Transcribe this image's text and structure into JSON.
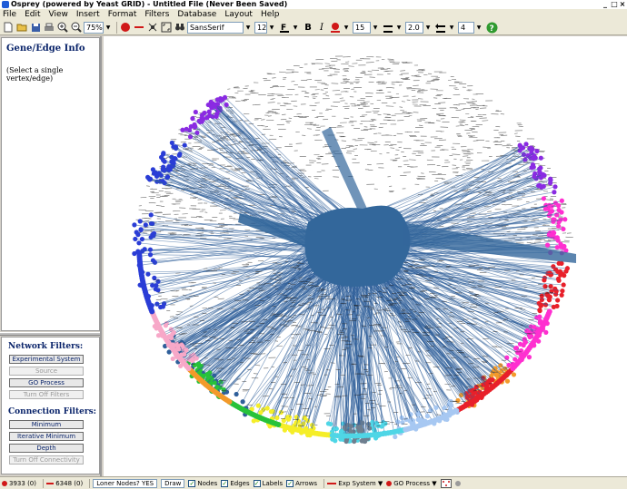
{
  "window": {
    "title": "Osprey (powered by Yeast GRID) - Untitled File (Never Been Saved)"
  },
  "menu": [
    "File",
    "Edit",
    "View",
    "Insert",
    "Format",
    "Filters",
    "Database",
    "Layout",
    "Help"
  ],
  "toolbar": {
    "zoom": "75%",
    "font_name": "SansSerif",
    "font_size": "12",
    "node_size": "15",
    "line_width": "2.0",
    "arrow_size": "4",
    "bold_label": "B",
    "italic_label": "I"
  },
  "info_panel": {
    "title": "Gene/Edge Info",
    "message": "(Select a single vertex/edge)"
  },
  "network_filters": {
    "title": "Network Filters:",
    "buttons": [
      "Experimental System",
      "Source",
      "GO Process",
      "Turn Off Filters"
    ]
  },
  "connection_filters": {
    "title": "Connection Filters:",
    "buttons": [
      "Minimum",
      "Iterative Minimum",
      "Depth",
      "Turn Off Connectivity"
    ]
  },
  "status": {
    "nodes_count": "3933",
    "nodes_selected": "(0)",
    "edges_count": "6348",
    "edges_selected": "(0)",
    "loner_nodes": "Loner Nodes? YES",
    "draw_label": "Draw",
    "nodes_label": "Nodes",
    "edges_label": "Edges",
    "labels_label": "Labels",
    "arrows_label": "Arrows",
    "exp_system_label": "Exp System",
    "go_process_label": "GO Process"
  },
  "colors": {
    "hub": "#33679b",
    "edge": "#2f5f9a",
    "purple": "#8a2be2",
    "magenta": "#ff2fd0",
    "blue": "#2a3dd6",
    "yellow": "#f5ee28",
    "orange": "#f39a2a",
    "cyan": "#4fd6e6",
    "lightblue": "#a7c8f2",
    "green": "#27c23a",
    "red": "#e8202a",
    "pink": "#f7a8c8",
    "gray": "#6f7f8f"
  }
}
